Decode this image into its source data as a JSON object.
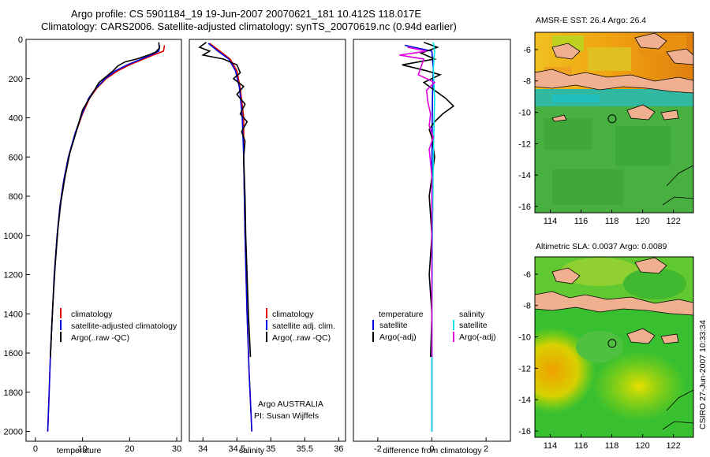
{
  "header": {
    "line1": "Argo profile: CS 5901184_19 19-Jun-2007 20070621_181 10.412S 118.017E",
    "line2": "Climatology: CARS2006. Satellite-adjusted climatology: synTS_20070619.nc (0.94d earlier)"
  },
  "colors": {
    "climatology": "#e00000",
    "satellite": "#0000e0",
    "argo": "#000000",
    "sat_diff": "#00e0e0",
    "argo_adj": "#e000e0",
    "land": "#f0b090"
  },
  "chart_data": [
    {
      "type": "line",
      "panel": "temperature",
      "xlabel": "temperature",
      "ylabel": "",
      "xlim": [
        -2,
        31
      ],
      "ylim": [
        2050,
        0
      ],
      "xticks": [
        0,
        10,
        20,
        30
      ],
      "yticks": [
        0,
        200,
        400,
        600,
        800,
        1000,
        1200,
        1400,
        1600,
        1800,
        2000
      ],
      "legend": [
        "climatology",
        "satellite-adjusted climatology",
        "Argo(..raw -QC)"
      ],
      "series": [
        {
          "name": "climatology",
          "color": "climatology",
          "points": [
            [
              27.4,
              30
            ],
            [
              27.2,
              60
            ],
            [
              25,
              80
            ],
            [
              22.5,
              105
            ],
            [
              20,
              130
            ],
            [
              17.5,
              160
            ],
            [
              15,
              200
            ],
            [
              13,
              250
            ],
            [
              11.5,
              300
            ],
            [
              10,
              380
            ],
            [
              8.5,
              480
            ],
            [
              7,
              600
            ],
            [
              6,
              720
            ],
            [
              5.2,
              850
            ],
            [
              4.6,
              1000
            ],
            [
              4,
              1200
            ],
            [
              3.6,
              1400
            ],
            [
              3.2,
              1600
            ],
            [
              2.9,
              1800
            ],
            [
              2.6,
              2000
            ]
          ]
        },
        {
          "name": "satellite-adjusted climatology",
          "color": "satellite",
          "points": [
            [
              26.4,
              30
            ],
            [
              26.2,
              60
            ],
            [
              24.5,
              80
            ],
            [
              22,
              105
            ],
            [
              19.5,
              130
            ],
            [
              17,
              160
            ],
            [
              14.8,
              200
            ],
            [
              12.8,
              250
            ],
            [
              11.3,
              300
            ],
            [
              9.9,
              380
            ],
            [
              8.4,
              480
            ],
            [
              7,
              600
            ],
            [
              6,
              720
            ],
            [
              5.2,
              850
            ],
            [
              4.6,
              1000
            ],
            [
              4,
              1200
            ],
            [
              3.6,
              1400
            ],
            [
              3.2,
              1600
            ],
            [
              2.9,
              1800
            ],
            [
              2.6,
              2000
            ]
          ]
        },
        {
          "name": "Argo(..raw -QC)",
          "color": "argo",
          "points": [
            [
              26.2,
              15
            ],
            [
              26.3,
              45
            ],
            [
              25.5,
              65
            ],
            [
              24,
              80
            ],
            [
              21.5,
              100
            ],
            [
              19,
              115
            ],
            [
              17.5,
              135
            ],
            [
              16.5,
              160
            ],
            [
              15,
              190
            ],
            [
              13.5,
              220
            ],
            [
              12.5,
              260
            ],
            [
              11.5,
              300
            ],
            [
              10,
              360
            ],
            [
              8.8,
              460
            ],
            [
              7.3,
              580
            ],
            [
              6.3,
              700
            ],
            [
              5.4,
              830
            ],
            [
              4.8,
              960
            ],
            [
              4.2,
              1150
            ],
            [
              3.7,
              1350
            ],
            [
              3.4,
              1500
            ],
            [
              3.2,
              1620
            ]
          ]
        }
      ]
    },
    {
      "type": "line",
      "panel": "salinity",
      "xlabel": "salinity",
      "xlim": [
        33.8,
        36.1
      ],
      "ylim": [
        2050,
        0
      ],
      "xticks": [
        34,
        34.5,
        35,
        35.5,
        36
      ],
      "xtick_labels": [
        "34",
        "34.5",
        "35",
        "35.5",
        "36"
      ],
      "legend": [
        "climatology",
        "satellite adj. clim.",
        "Argo(..raw -QC)"
      ],
      "notes": [
        "Argo AUSTRALIA",
        "PI: Susan Wijffels"
      ],
      "series": [
        {
          "name": "climatology",
          "color": "climatology",
          "points": [
            [
              34.1,
              20
            ],
            [
              34.25,
              60
            ],
            [
              34.4,
              100
            ],
            [
              34.5,
              160
            ],
            [
              34.55,
              250
            ],
            [
              34.6,
              400
            ],
            [
              34.6,
              600
            ],
            [
              34.62,
              1000
            ],
            [
              34.65,
              1400
            ],
            [
              34.68,
              1700
            ],
            [
              34.72,
              2000
            ]
          ]
        },
        {
          "name": "satellite adj. clim.",
          "color": "satellite",
          "points": [
            [
              34.08,
              20
            ],
            [
              34.22,
              60
            ],
            [
              34.38,
              100
            ],
            [
              34.48,
              160
            ],
            [
              34.54,
              250
            ],
            [
              34.58,
              400
            ],
            [
              34.6,
              600
            ],
            [
              34.62,
              1000
            ],
            [
              34.65,
              1400
            ],
            [
              34.68,
              1700
            ],
            [
              34.72,
              2000
            ]
          ]
        },
        {
          "name": "Argo(..raw -QC)",
          "color": "argo",
          "points": [
            [
              34.05,
              15
            ],
            [
              33.95,
              40
            ],
            [
              34.1,
              60
            ],
            [
              34.0,
              80
            ],
            [
              34.3,
              100
            ],
            [
              34.5,
              130
            ],
            [
              34.55,
              170
            ],
            [
              34.45,
              200
            ],
            [
              34.6,
              240
            ],
            [
              34.5,
              280
            ],
            [
              34.62,
              330
            ],
            [
              34.55,
              380
            ],
            [
              34.65,
              420
            ],
            [
              34.57,
              470
            ],
            [
              34.62,
              520
            ],
            [
              34.6,
              600
            ],
            [
              34.62,
              800
            ],
            [
              34.63,
              1000
            ],
            [
              34.65,
              1200
            ],
            [
              34.67,
              1400
            ],
            [
              34.7,
              1620
            ]
          ]
        }
      ]
    },
    {
      "type": "line",
      "panel": "difference",
      "xlabel": "difference from climatology",
      "xlim": [
        -2.9,
        2.9
      ],
      "ylim": [
        2050,
        0
      ],
      "xticks": [
        -2,
        0,
        2
      ],
      "legend_left_title": "temperature",
      "legend_left": [
        "satellite",
        "Argo(-adj)"
      ],
      "legend_right_title": "salinity",
      "legend_right": [
        "satellite",
        "Argo(-adj)"
      ],
      "series": [
        {
          "name": "satellite",
          "group": "temperature",
          "color": "satellite",
          "points": [
            [
              -1.0,
              30
            ],
            [
              0,
              60
            ],
            [
              0.05,
              150
            ],
            [
              0.02,
              300
            ],
            [
              0,
              600
            ],
            [
              0,
              1000
            ],
            [
              0,
              2000
            ]
          ]
        },
        {
          "name": "Argo(-adj)",
          "group": "temperature",
          "color": "argo",
          "points": [
            [
              -0.3,
              15
            ],
            [
              0.2,
              40
            ],
            [
              -0.4,
              70
            ],
            [
              0.1,
              100
            ],
            [
              -1.1,
              130
            ],
            [
              -0.2,
              160
            ],
            [
              0.3,
              180
            ],
            [
              -0.3,
              220
            ],
            [
              0.1,
              260
            ],
            [
              0.5,
              300
            ],
            [
              0.8,
              340
            ],
            [
              0.4,
              380
            ],
            [
              0.1,
              420
            ],
            [
              -0.1,
              460
            ],
            [
              0,
              500
            ],
            [
              0.1,
              600
            ],
            [
              -0.1,
              800
            ],
            [
              0,
              1000
            ],
            [
              -0.1,
              1200
            ],
            [
              0,
              1400
            ],
            [
              -0.05,
              1620
            ]
          ]
        },
        {
          "name": "satellite",
          "group": "salinity",
          "color": "sat_diff",
          "points": [
            [
              0.05,
              15
            ],
            [
              0.1,
              60
            ],
            [
              0.05,
              150
            ],
            [
              0.1,
              300
            ],
            [
              0.05,
              600
            ],
            [
              0.02,
              1000
            ],
            [
              0,
              1500
            ],
            [
              0,
              2000
            ]
          ]
        },
        {
          "name": "Argo(-adj)",
          "group": "salinity",
          "color": "argo_adj",
          "points": [
            [
              -0.9,
              40
            ],
            [
              -0.2,
              60
            ],
            [
              -1.2,
              80
            ],
            [
              -0.3,
              100
            ],
            [
              -0.5,
              180
            ],
            [
              0.1,
              220
            ],
            [
              -0.2,
              260
            ],
            [
              -0.15,
              320
            ],
            [
              -0.05,
              380
            ],
            [
              -0.1,
              440
            ],
            [
              0.05,
              500
            ],
            [
              -0.1,
              560
            ],
            [
              0,
              700
            ],
            [
              0,
              1000
            ],
            [
              0,
              1400
            ],
            [
              0,
              1620
            ]
          ]
        }
      ]
    },
    {
      "type": "heatmap",
      "panel": "sst",
      "title": "AMSR-E SST: 26.4 Argo: 26.4",
      "xlim": [
        113,
        123.3
      ],
      "ylim": [
        -16.4,
        -4.9
      ],
      "xticks": [
        114,
        116,
        118,
        120,
        122
      ],
      "yticks": [
        -6,
        -8,
        -10,
        -12,
        -14,
        -16
      ],
      "marker": {
        "lon": 118.017,
        "lat": -10.412
      }
    },
    {
      "type": "heatmap",
      "panel": "sla",
      "title": "Altimetric SLA: 0.0037 Argo: 0.0089",
      "xlim": [
        113,
        123.3
      ],
      "ylim": [
        -16.4,
        -4.9
      ],
      "xticks": [
        114,
        116,
        118,
        120,
        122
      ],
      "yticks": [
        -6,
        -8,
        -10,
        -12,
        -14,
        -16
      ],
      "marker": {
        "lon": 118.017,
        "lat": -10.412
      }
    }
  ],
  "footer": {
    "stamp": "CSIRO 27-Jun-2007 10:33:34"
  }
}
